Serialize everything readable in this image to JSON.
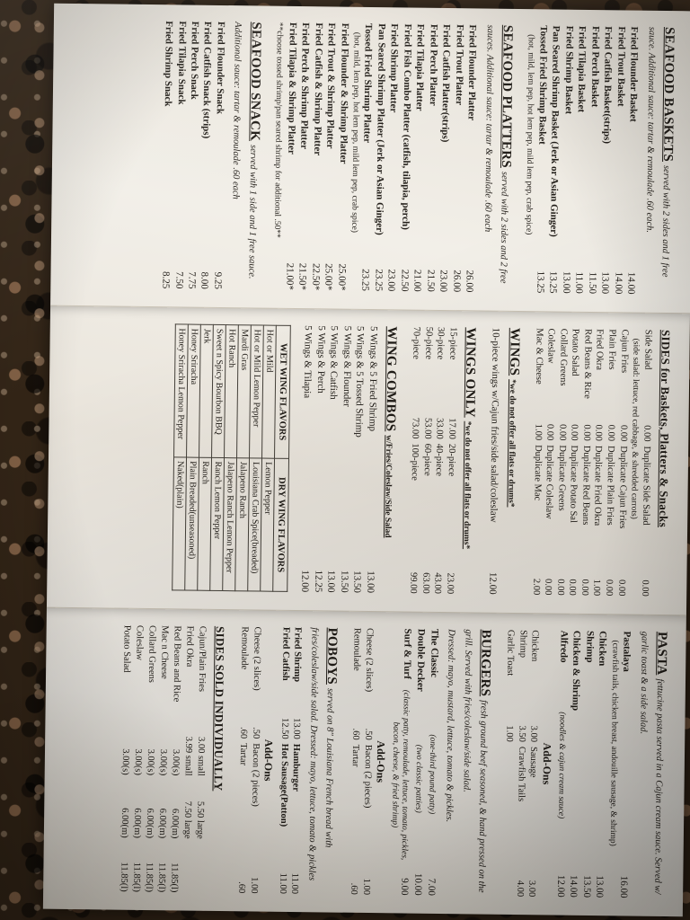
{
  "scene": {
    "paper_color": "#f0ede7",
    "ink_color": "#201c17",
    "granite_base": "#362718"
  },
  "panel1": {
    "baskets": {
      "title": "SEAFOOD BASKETS",
      "subtitle": "served with 2 sides and 1 free sauce. Additional sauce: tartar & remoulade .60 each.",
      "items": [
        {
          "name": "Fried Flounder Basket",
          "price": "14.00"
        },
        {
          "name": "Fried Trout Basket",
          "price": "14.00"
        },
        {
          "name": "Fried Catfish Basket(strips)",
          "price": "13.00"
        },
        {
          "name": "Fried Perch Basket",
          "price": "11.50"
        },
        {
          "name": "Fried Tilapia Basket",
          "price": "11.00"
        },
        {
          "name": "Fried Shrimp Basket",
          "price": "13.00"
        },
        {
          "name": "Pan Seared Shrimp Basket (Jerk or Asian Ginger)",
          "price": "13.25"
        },
        {
          "name": "Tossed Fried Shrimp Basket",
          "price": "13.25",
          "note": "(hot, mild, lem pep, hot lem pep, mild lem pep, crab spice)"
        }
      ]
    },
    "platters": {
      "title": "SEAFOOD PLATTERS",
      "subtitle": "served with 2 sides and 2 free sauces. Additional sauce: tartar & remoulade .60 each",
      "items": [
        {
          "name": "Fried Flounder Platter",
          "price": "26.00"
        },
        {
          "name": "Fried Trout Platter",
          "price": "26.00"
        },
        {
          "name": "Fried Catfish Platter(strips)",
          "price": "23.00"
        },
        {
          "name": "Fried Perch Platter",
          "price": "21.50"
        },
        {
          "name": "Fried Tilapia Platter",
          "price": "21.00"
        },
        {
          "name": "Fried Fish Combo Platter (catfish, tilapia, perch)",
          "price": "22.50"
        },
        {
          "name": "Fried Shrimp Platter",
          "price": "23.00"
        },
        {
          "name": "Pan Seared Shrimp Platter (Jerk or Asian Ginger)",
          "price": "23.25"
        },
        {
          "name": "Tossed Fried Shrimp Platter",
          "price": "23.25",
          "note": "(hot, mild, lem pep, hot lem pep, mild lem pep, crab spice)"
        },
        {
          "name": "Fried Flounder & Shrimp Platter",
          "price": "25.00*"
        },
        {
          "name": "Fried Trout & Shrimp Platter",
          "price": "25.00*"
        },
        {
          "name": "Fried Catfish & Shrimp Platter",
          "price": "22.50*"
        },
        {
          "name": "Fried Perch & Shrimp Platter",
          "price": "21.50*"
        },
        {
          "name": "Fried Tilapia & Shrimp Platter",
          "price": "21.00*"
        }
      ],
      "footnote": "**choose tossed shrimp/pan seared shrimp for additional .50**"
    },
    "snack": {
      "title": "SEAFOOD SNACK",
      "subtitle": "served with 1 side and 1 free sauce. Additional sauce: tartar & remoulade .60 each",
      "items": [
        {
          "name": "Fried Flounder Snack",
          "price": "9.25"
        },
        {
          "name": "Fried Catfish Snack (strips)",
          "price": "8.00"
        },
        {
          "name": "Fried Perch Snack",
          "price": "7.75"
        },
        {
          "name": "Fried Tilapia Snack",
          "price": "7.50"
        },
        {
          "name": "Fried Shrimp Snack",
          "price": "8.25"
        }
      ]
    }
  },
  "panel2": {
    "sides": {
      "title": "SIDES for Baskets, Platters & Snacks",
      "rows": [
        {
          "n1": "Side Salad",
          "p1": "0.00",
          "n2": "Duplicate Side Salad",
          "p2": "0.00",
          "note": "(side salad: lettuce, red cabbage, & shredded carrots)"
        },
        {
          "n1": "Cajun Fries",
          "p1": "0.00",
          "n2": "Duplicate Cajun Fries",
          "p2": "0.00"
        },
        {
          "n1": "Plain Fries",
          "p1": "0.00",
          "n2": "Duplicate Plain Fries",
          "p2": "0.00"
        },
        {
          "n1": "Fried Okra",
          "p1": "0.00",
          "n2": "Duplicate Fried Okra",
          "p2": "1.00"
        },
        {
          "n1": "Red Beans & Rice",
          "p1": "0.00",
          "n2": "Duplicate Red Beans",
          "p2": "0.00"
        },
        {
          "n1": "Potato Salad",
          "p1": "0.00",
          "n2": "Duplicate Potato Sal",
          "p2": "0.00"
        },
        {
          "n1": "Collard Greens",
          "p1": "0.00",
          "n2": "Duplicate Greens",
          "p2": "0.00"
        },
        {
          "n1": "Coleslaw",
          "p1": "0.00",
          "n2": "Duplicate Coleslaw",
          "p2": "0.00"
        },
        {
          "n1": "Mac & Cheese",
          "p1": "1.00",
          "n2": "Duplicate Mac",
          "p2": "2.00"
        }
      ]
    },
    "wings": {
      "title": "WINGS",
      "title_note": "*we do not offer all flats or drums*",
      "items": [
        {
          "name": "10-piece wings w/Cajun fries/side salad/coleslaw",
          "price": "12.00"
        }
      ]
    },
    "wings_only": {
      "title": "WINGS ONLY",
      "title_note": "*we do not offer all flats or drums*",
      "rows": [
        {
          "n1": "15-piece",
          "p1": "17.00",
          "n2": "20-piece",
          "p2": "23.00"
        },
        {
          "n1": "30-piece",
          "p1": "33.00",
          "n2": "40-piece",
          "p2": "43.00"
        },
        {
          "n1": "50-piece",
          "p1": "53.00",
          "n2": "60-piece",
          "p2": "63.00"
        },
        {
          "n1": "70-piece",
          "p1": "73.00",
          "n2": "100-piece",
          "p2": "99.00"
        }
      ]
    },
    "wing_combos": {
      "title": "WING COMBOS",
      "title_note": "w/Fries/Coleslaw/Side Salad",
      "items": [
        {
          "name": "5 Wings & 5 Fried Shrimp",
          "price": "13.00"
        },
        {
          "name": "5 Wings & 5 Tossed Shrimp",
          "price": "13.50"
        },
        {
          "name": "5 Wings & Flounder",
          "price": "13.50"
        },
        {
          "name": "5 Wings & Catfish",
          "price": "13.00"
        },
        {
          "name": "5 Wings & Perch",
          "price": "12.25"
        },
        {
          "name": "5 Wings & Tilapia",
          "price": "12.00"
        }
      ]
    },
    "flavors": {
      "wet_header": "WET WING FLAVORS",
      "dry_header": "DRY WING FLAVORS",
      "rows": [
        {
          "wet": "Hot or Mild",
          "dry": "Lemon Pepper"
        },
        {
          "wet": "Hot or Mild Lemon Pepper",
          "dry": "Louisiana Crab Spice(breaded)"
        },
        {
          "wet": "Mardi Gras",
          "dry": "Jalapeno Ranch"
        },
        {
          "wet": "Hot Ranch",
          "dry": "Jalapeno Ranch Lemon Pepper"
        },
        {
          "wet": "Sweet n Spicy Bourbon BBQ",
          "dry": "Ranch Lemon Pepper"
        },
        {
          "wet": "Jerk",
          "dry": "Ranch"
        },
        {
          "wet": "Honey Sriracha",
          "dry": "Plain Breaded(unseasoned)"
        },
        {
          "wet": "Honey Sriracha Lemon Pepper",
          "dry": "Naked(plain)"
        }
      ]
    }
  },
  "panel3": {
    "pasta": {
      "title": "PASTA",
      "subtitle": "fettucine pasta served in a Cajun cream sauce. Served w/ garlic toast & a side salad.",
      "items": [
        {
          "name": "Pastalaya",
          "price": "16.00",
          "note": "(crawfish tails, chicken breast, andouille sausage, & shrimp)"
        },
        {
          "name": "Chicken",
          "price": "13.00"
        },
        {
          "name": "Shrimp",
          "price": "13.50"
        },
        {
          "name": "Chicken & Shrimp",
          "price": "14.00"
        },
        {
          "name": "Alfredo",
          "note_inline": "(noodles & cajun cream sauce)",
          "price": "12.00"
        }
      ],
      "addons_title": "Add-Ons",
      "addon_rows": [
        {
          "n1": "Chicken",
          "p1": "3.00",
          "n2": "Sausage",
          "p2": "3.00"
        },
        {
          "n1": "Shrimp",
          "p1": "3.50",
          "n2": "Crawfish Tails",
          "p2": "4.00"
        },
        {
          "n1": "Garlic Toast",
          "p1": "1.00",
          "n2": "",
          "p2": ""
        }
      ]
    },
    "burgers": {
      "title": "BURGERS",
      "subtitle": "fresh ground beef seasoned, & hand pressed on the grill. Served with fries/coleslaw/side salad.",
      "subtitle2": "Dressed: mayo, mustard, lettuce, tomato & pickles.",
      "items": [
        {
          "name": "The Classic",
          "note_inline": "(one-third pound patty)",
          "price": "7.00"
        },
        {
          "name": "Double Decker",
          "note_inline": "(two classic patties)",
          "price": "10.00"
        },
        {
          "name": "Surf & Turf",
          "note_inline": "(classic patty, remoulade, lettuce, tomato, pickles, bacon, cheese, & fried shrimp)",
          "price": "9.00"
        }
      ],
      "addons_title": "Add-Ons",
      "addon_rows": [
        {
          "n1": "Cheese (2 slices)",
          "p1": ".50",
          "n2": "Bacon (2 pieces)",
          "p2": "1.00"
        },
        {
          "n1": "Remoulade",
          "p1": ".60",
          "n2": "Tartar",
          "p2": ".60"
        }
      ]
    },
    "poboys": {
      "title": "POBOYS",
      "subtitle": "served on 8\" Louisiana French bread with fries/coleslaw/side salad. Dressed: mayo, lettuce, tomato & pickles",
      "rows": [
        {
          "n1": "Fried Shrimp",
          "p1": "13.00",
          "n2": "Hamburger",
          "p2": "11.00"
        },
        {
          "n1": "Fried Catfish",
          "p1": "12.50",
          "n2": "Hot Sausage(Patton)",
          "p2": "11.00"
        }
      ],
      "addons_title": "Add-Ons",
      "addon_rows": [
        {
          "n1": "Cheese (2 slices)",
          "p1": ".50",
          "n2": "Bacon (2 pieces)",
          "p2": "1.00"
        },
        {
          "n1": "Remoulade",
          "p1": ".60",
          "n2": "Tartar",
          "p2": ".60"
        }
      ]
    },
    "sides_individual": {
      "title": "SIDES SOLD INDIVIDUALLY",
      "rows": [
        {
          "name": "Cajun/Plain Fries",
          "s": "3.00 small",
          "m": "5.50 large",
          "l": ""
        },
        {
          "name": "Fried Okra",
          "s": "3.99 small",
          "m": "7.50 large",
          "l": ""
        },
        {
          "name": "Red Beans and Rice",
          "s": "3.00(s)",
          "m": "6.00(m)",
          "l": "11.85(l)"
        },
        {
          "name": "Mac n Cheese",
          "s": "3.00(s)",
          "m": "6.00(m)",
          "l": "11.85(l)"
        },
        {
          "name": "Collard Greens",
          "s": "3.00(s)",
          "m": "6.00(m)",
          "l": "11.85(l)"
        },
        {
          "name": "Coleslaw",
          "s": "3.00(s)",
          "m": "6.00(m)",
          "l": "11.85(l)"
        },
        {
          "name": "Potato Salad",
          "s": "3.00(s)",
          "m": "6.00(m)",
          "l": "11.85(l)"
        }
      ]
    }
  }
}
